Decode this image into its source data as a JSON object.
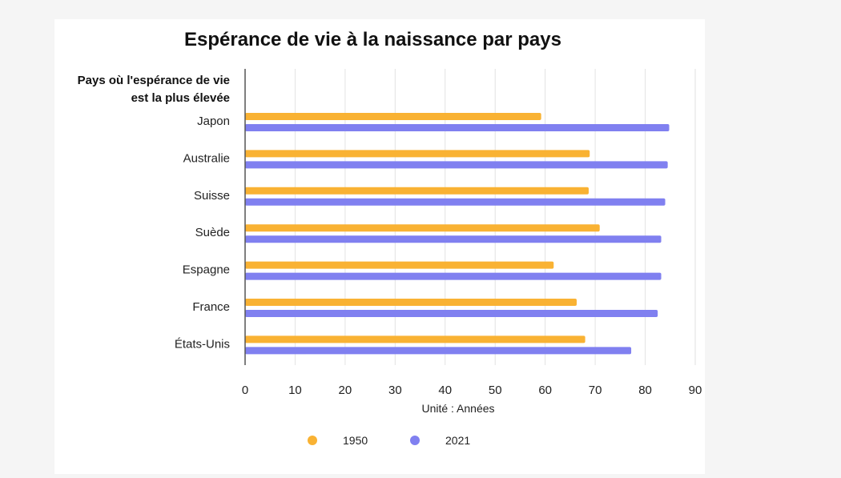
{
  "chart_data": {
    "type": "bar",
    "orientation": "horizontal",
    "title": "Espérance de vie à la naissance par pays",
    "y_header": [
      "Pays où l'espérance de vie",
      "est la plus élevée"
    ],
    "xlabel": "Unité : Années",
    "categories": [
      "Japon",
      "Australie",
      "Suisse",
      "Suède",
      "Espagne",
      "France",
      "États-Unis"
    ],
    "series": [
      {
        "name": "1950",
        "color": "#f9b233",
        "values": [
          59.2,
          68.9,
          68.7,
          70.9,
          61.7,
          66.3,
          68.0
        ]
      },
      {
        "name": "2021",
        "color": "#8080f0",
        "values": [
          84.8,
          84.5,
          84.0,
          83.2,
          83.2,
          82.5,
          77.2
        ]
      }
    ],
    "xlim": [
      0,
      90
    ],
    "xticks": [
      0,
      10,
      20,
      30,
      40,
      50,
      60,
      70,
      80,
      90
    ],
    "grid": true,
    "legend_position": "bottom"
  }
}
